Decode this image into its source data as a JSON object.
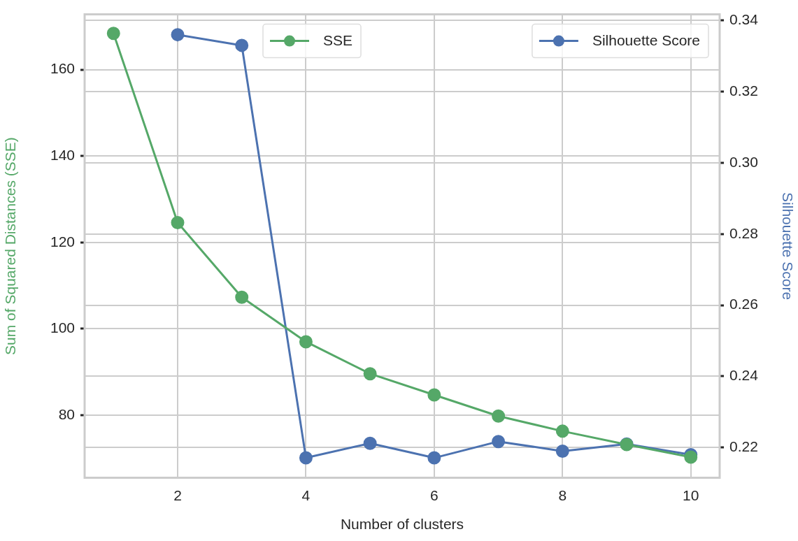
{
  "chart_data": {
    "type": "line",
    "xlabel": "Number of clusters",
    "ylabel": "Sum of Squared Distances (SSE)",
    "y2label": "Silhouette Score",
    "x": [
      1,
      2,
      3,
      4,
      5,
      6,
      7,
      8,
      9,
      10
    ],
    "series": [
      {
        "name": "SSE",
        "color": "#55a868",
        "values": [
          168.4,
          124.6,
          107.3,
          97.0,
          89.6,
          84.7,
          79.8,
          76.3,
          73.2,
          70.3
        ]
      },
      {
        "name": "Silhouette Score",
        "color": "#4c72b0",
        "axis": "y2",
        "x": [
          2,
          3,
          4,
          5,
          6,
          7,
          8,
          9,
          10
        ],
        "values": [
          0.336,
          0.333,
          0.2171,
          0.2212,
          0.2171,
          0.2217,
          0.219,
          0.221,
          0.218
        ]
      }
    ],
    "xlim": [
      0.55,
      10.45
    ],
    "xticks": [
      2,
      4,
      6,
      8,
      10
    ],
    "ylim": [
      65.5,
      172.8
    ],
    "yticks": [
      80,
      100,
      120,
      140,
      160
    ],
    "y2lim": [
      0.2115,
      0.3417
    ],
    "y2ticks": [
      {
        "value": 0.22,
        "label": "0.22"
      },
      {
        "value": 0.24,
        "label": "0.24"
      },
      {
        "value": 0.26,
        "label": "0.26"
      },
      {
        "value": 0.28,
        "label": "0.28"
      },
      {
        "value": 0.3,
        "label": "0.30"
      },
      {
        "value": 0.32,
        "label": "0.32"
      },
      {
        "value": 0.34,
        "label": "0.34"
      }
    ],
    "grid": true,
    "legend": "top",
    "marker": "circle",
    "line_style": "solid"
  }
}
